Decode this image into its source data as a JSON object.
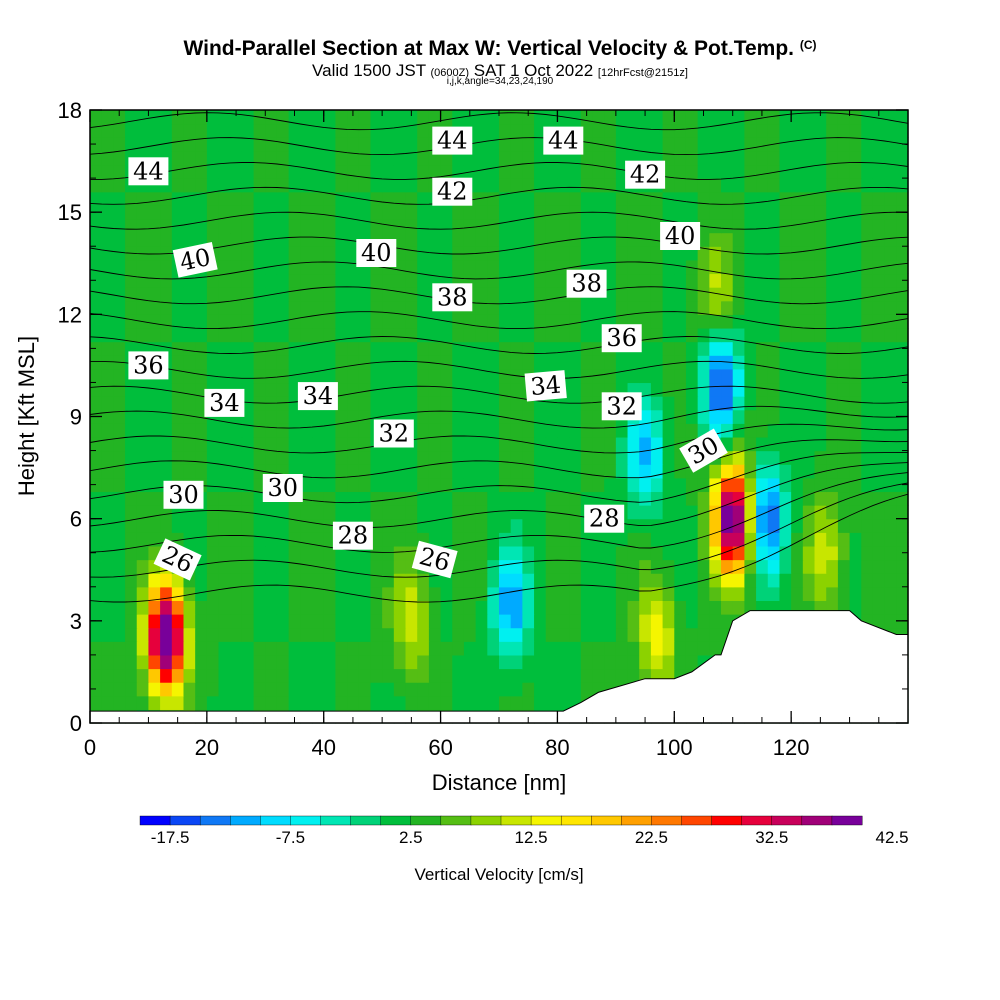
{
  "title": {
    "main": "Wind-Parallel Section at Max W: Vertical Velocity & Pot.Temp.",
    "main_suffix": "(C)",
    "valid_prefix": "Valid 1500 JST",
    "valid_tz": "(0600Z)",
    "valid_date": "SAT 1 Oct 2022",
    "valid_fcst": "[12hrFcst@2151z]",
    "subline": "i,j,k,angle=34,23,24,190"
  },
  "chart_data": {
    "type": "heatmap",
    "title": "Wind-Parallel Section at Max W: Vertical Velocity & Pot.Temp.",
    "xlabel": "Distance [nm]",
    "ylabel": "Height [Kft MSL]",
    "xlim": [
      0,
      140
    ],
    "ylim": [
      0,
      18
    ],
    "x_ticks": [
      "0",
      "20",
      "40",
      "60",
      "80",
      "100",
      "120"
    ],
    "y_ticks": [
      "0",
      "3",
      "6",
      "9",
      "12",
      "15",
      "18"
    ],
    "colorbar": {
      "label": "Vertical Velocity [cm/s]",
      "tick_labels": [
        "-17.5",
        "-7.5",
        "2.5",
        "12.5",
        "22.5",
        "32.5",
        "42.5"
      ],
      "min": -20,
      "step": 2.5,
      "colors": [
        "#0000ff",
        "#0a46f5",
        "#0f78f5",
        "#00aaff",
        "#00dcff",
        "#00f0f0",
        "#00e6b4",
        "#00d278",
        "#00be3c",
        "#23b423",
        "#55be14",
        "#8cd200",
        "#c8e600",
        "#f5f500",
        "#ffe600",
        "#ffc800",
        "#ffa000",
        "#ff7800",
        "#ff4600",
        "#ff0000",
        "#e6003c",
        "#c8005a",
        "#a00078",
        "#78009a"
      ]
    },
    "velocity_cells": [
      {
        "x": 13,
        "y": 2.5,
        "w": 45,
        "label": "updraft low left"
      },
      {
        "x": 55,
        "y": 3.0,
        "w": 12,
        "label": "updraft low mid"
      },
      {
        "x": 72,
        "y": 3.5,
        "w": -12,
        "label": "downdraft low mid"
      },
      {
        "x": 97,
        "y": 2.5,
        "w": 14,
        "label": "updraft low right"
      },
      {
        "x": 110,
        "y": 6.0,
        "w": 42,
        "label": "main updraft"
      },
      {
        "x": 116,
        "y": 6.0,
        "w": -15,
        "label": "downdraft right"
      },
      {
        "x": 108,
        "y": 10.0,
        "w": -16,
        "label": "downdraft upper"
      },
      {
        "x": 95,
        "y": 7.8,
        "w": -10,
        "label": "downdraft slanted"
      },
      {
        "x": 126,
        "y": 5.0,
        "w": 12,
        "label": "updraft far right"
      },
      {
        "x": 107,
        "y": 12.5,
        "w": 10,
        "label": "updraft upper"
      }
    ],
    "theta_labels": [
      {
        "x": 10,
        "y": 16.2,
        "v": "44",
        "r": 0
      },
      {
        "x": 62,
        "y": 17.1,
        "v": "44",
        "r": 0
      },
      {
        "x": 81,
        "y": 17.1,
        "v": "44",
        "r": 0
      },
      {
        "x": 62,
        "y": 15.6,
        "v": "42",
        "r": 0
      },
      {
        "x": 95,
        "y": 16.1,
        "v": "42",
        "r": 0
      },
      {
        "x": 18,
        "y": 13.6,
        "v": "40",
        "r": -12
      },
      {
        "x": 49,
        "y": 13.8,
        "v": "40",
        "r": 0
      },
      {
        "x": 101,
        "y": 14.3,
        "v": "40",
        "r": 0
      },
      {
        "x": 62,
        "y": 12.5,
        "v": "38",
        "r": 0
      },
      {
        "x": 85,
        "y": 12.9,
        "v": "38",
        "r": 0
      },
      {
        "x": 10,
        "y": 10.5,
        "v": "36",
        "r": 0
      },
      {
        "x": 91,
        "y": 11.3,
        "v": "36",
        "r": 0
      },
      {
        "x": 23,
        "y": 9.4,
        "v": "34",
        "r": 0
      },
      {
        "x": 39,
        "y": 9.6,
        "v": "34",
        "r": 0
      },
      {
        "x": 78,
        "y": 9.9,
        "v": "34",
        "r": -5
      },
      {
        "x": 52,
        "y": 8.5,
        "v": "32",
        "r": 0
      },
      {
        "x": 91,
        "y": 9.3,
        "v": "32",
        "r": 0
      },
      {
        "x": 105,
        "y": 8.0,
        "v": "30",
        "r": -30
      },
      {
        "x": 16,
        "y": 6.7,
        "v": "30",
        "r": 0
      },
      {
        "x": 33,
        "y": 6.9,
        "v": "30",
        "r": 0
      },
      {
        "x": 45,
        "y": 5.5,
        "v": "28",
        "r": 0
      },
      {
        "x": 88,
        "y": 6.0,
        "v": "28",
        "r": 0
      },
      {
        "x": 15,
        "y": 4.8,
        "v": "26",
        "r": 25
      },
      {
        "x": 59,
        "y": 4.8,
        "v": "26",
        "r": 15
      }
    ],
    "terrain": [
      [
        0,
        0.35
      ],
      [
        81,
        0.35
      ],
      [
        81,
        0.35
      ],
      [
        84,
        0.6
      ],
      [
        87,
        0.9
      ],
      [
        95,
        1.3
      ],
      [
        100,
        1.3
      ],
      [
        103,
        1.5
      ],
      [
        107,
        2.0
      ],
      [
        108,
        2.0
      ],
      [
        110,
        3.0
      ],
      [
        113,
        3.3
      ],
      [
        130,
        3.3
      ],
      [
        132,
        3.0
      ],
      [
        138,
        2.6
      ],
      [
        140,
        2.6
      ]
    ]
  }
}
